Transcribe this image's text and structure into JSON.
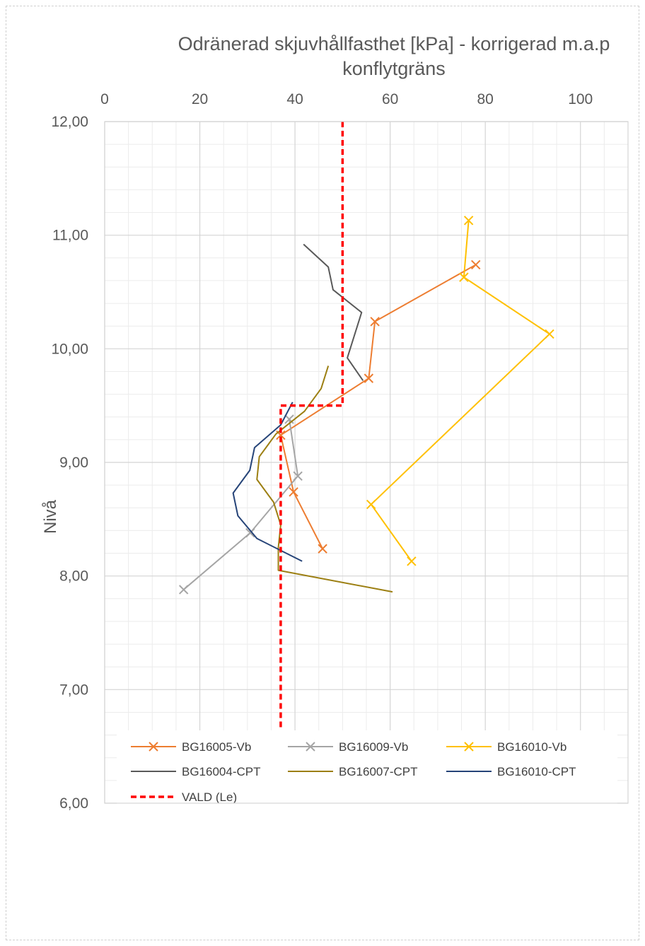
{
  "chart_data": {
    "type": "line",
    "title_lines": [
      "Odränerad skjuvhållfasthet [kPa] - korrigerad m.a.p",
      "konflytgräns"
    ],
    "xlabel": "",
    "ylabel": "Nivå",
    "xlim": [
      0,
      110
    ],
    "ylim": [
      6,
      12
    ],
    "x_axis_position": "top",
    "x_ticks": [
      {
        "value": 0,
        "label": "0"
      },
      {
        "value": 20,
        "label": "20"
      },
      {
        "value": 40,
        "label": "40"
      },
      {
        "value": 60,
        "label": "60"
      },
      {
        "value": 80,
        "label": "80"
      },
      {
        "value": 100,
        "label": "100"
      }
    ],
    "y_ticks": [
      {
        "value": 12,
        "label": "12,00"
      },
      {
        "value": 11,
        "label": "11,00"
      },
      {
        "value": 10,
        "label": "10,00"
      },
      {
        "value": 9,
        "label": "9,00"
      },
      {
        "value": 8,
        "label": "8,00"
      },
      {
        "value": 7,
        "label": "7,00"
      },
      {
        "value": 6,
        "label": "6,00"
      }
    ],
    "grid": {
      "major": true,
      "minor": true
    },
    "legend_position": "bottom-inside",
    "series": [
      {
        "name": "BG16005-Vb",
        "color": "#ED7D31",
        "marker": "x",
        "dash": false,
        "points": [
          [
            78.0,
            10.74
          ],
          [
            56.8,
            10.24
          ],
          [
            55.5,
            9.74
          ],
          [
            37.0,
            9.24
          ],
          [
            39.7,
            8.74
          ],
          [
            45.8,
            8.24
          ]
        ]
      },
      {
        "name": "BG16009-Vb",
        "color": "#A5A5A5",
        "marker": "x",
        "dash": false,
        "points": [
          [
            38.8,
            9.38
          ],
          [
            40.6,
            8.88
          ],
          [
            30.6,
            8.38
          ],
          [
            16.6,
            7.88
          ]
        ]
      },
      {
        "name": "BG16010-Vb",
        "color": "#FFC000",
        "marker": "x",
        "dash": false,
        "points": [
          [
            76.5,
            11.13
          ],
          [
            75.5,
            10.63
          ],
          [
            93.5,
            10.13
          ],
          [
            56.0,
            8.63
          ],
          [
            64.5,
            8.13
          ]
        ]
      },
      {
        "name": "BG16004-CPT",
        "color": "#595959",
        "marker": "none",
        "dash": false,
        "points": [
          [
            41.8,
            10.92
          ],
          [
            47.0,
            10.72
          ],
          [
            48.0,
            10.52
          ],
          [
            54.0,
            10.32
          ],
          [
            51.0,
            9.92
          ],
          [
            54.3,
            9.72
          ]
        ]
      },
      {
        "name": "BG16007-CPT",
        "color": "#9C7F12",
        "marker": "none",
        "dash": false,
        "points": [
          [
            47.0,
            9.85
          ],
          [
            45.5,
            9.65
          ],
          [
            42.0,
            9.45
          ],
          [
            36.0,
            9.25
          ],
          [
            32.5,
            9.05
          ],
          [
            32.0,
            8.85
          ],
          [
            35.5,
            8.65
          ],
          [
            37.0,
            8.45
          ],
          [
            36.5,
            8.25
          ],
          [
            36.5,
            8.05
          ],
          [
            60.5,
            7.86
          ]
        ]
      },
      {
        "name": "BG16010-CPT",
        "color": "#264478",
        "marker": "none",
        "dash": false,
        "points": [
          [
            39.5,
            9.53
          ],
          [
            37.0,
            9.33
          ],
          [
            31.5,
            9.13
          ],
          [
            30.5,
            8.93
          ],
          [
            27.0,
            8.73
          ],
          [
            28.0,
            8.53
          ],
          [
            32.0,
            8.33
          ],
          [
            41.5,
            8.13
          ]
        ]
      },
      {
        "name": "VALD (Le)",
        "color": "#FF0000",
        "marker": "none",
        "dash": true,
        "points": [
          [
            50.0,
            12.0
          ],
          [
            50.0,
            9.5
          ],
          [
            37.0,
            9.5
          ],
          [
            37.0,
            6.0
          ]
        ]
      }
    ]
  }
}
